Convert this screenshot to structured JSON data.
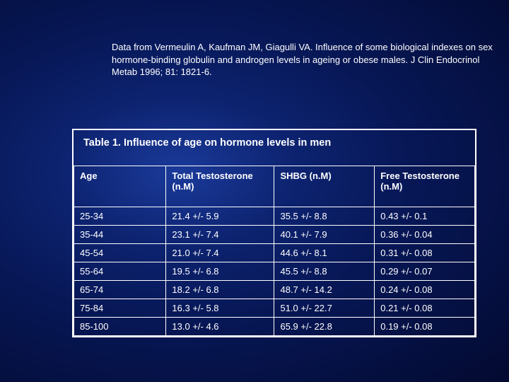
{
  "citation": "Data from Vermeulin A, Kaufman JM, Giagulli VA. Influence of some biological indexes on sex hormone-binding globulin and androgen levels in ageing or obese males. J Clin Endocrinol Metab 1996; 81: 1821-6.",
  "table": {
    "title": "Table 1. Influence of age on hormone levels in men",
    "columns": [
      "Age",
      "Total Testosterone (n.M)",
      "SHBG (n.M)",
      "Free Testosterone (n.M)"
    ],
    "rows": [
      [
        "25-34",
        "21.4 +/- 5.9",
        "35.5 +/- 8.8",
        "0.43 +/- 0.1"
      ],
      [
        "35-44",
        "23.1 +/- 7.4",
        "40.1 +/- 7.9",
        "0.36 +/- 0.04"
      ],
      [
        "45-54",
        "21.0 +/- 7.4",
        "44.6 +/- 8.1",
        "0.31 +/- 0.08"
      ],
      [
        "55-64",
        "19.5 +/- 6.8",
        "45.5 +/- 8.8",
        "0.29 +/- 0.07"
      ],
      [
        "65-74",
        "18.2 +/- 6.8",
        "48.7 +/- 14.2",
        "0.24 +/- 0.08"
      ],
      [
        "75-84",
        "16.3 +/- 5.8",
        "51.0 +/- 22.7",
        "0.21 +/- 0.08"
      ],
      [
        "85-100",
        "13.0 +/- 4.6",
        "65.9 +/- 22.8",
        "0.19 +/- 0.08"
      ]
    ],
    "colors": {
      "text": "#ffffff",
      "border": "#ffffff",
      "background_gradient_center": "#1a3a9a",
      "background_gradient_outer": "#030a30"
    },
    "font": {
      "family": "Verdana",
      "title_size_pt": 11,
      "header_size_pt": 10,
      "cell_size_pt": 10,
      "citation_size_pt": 10
    }
  }
}
